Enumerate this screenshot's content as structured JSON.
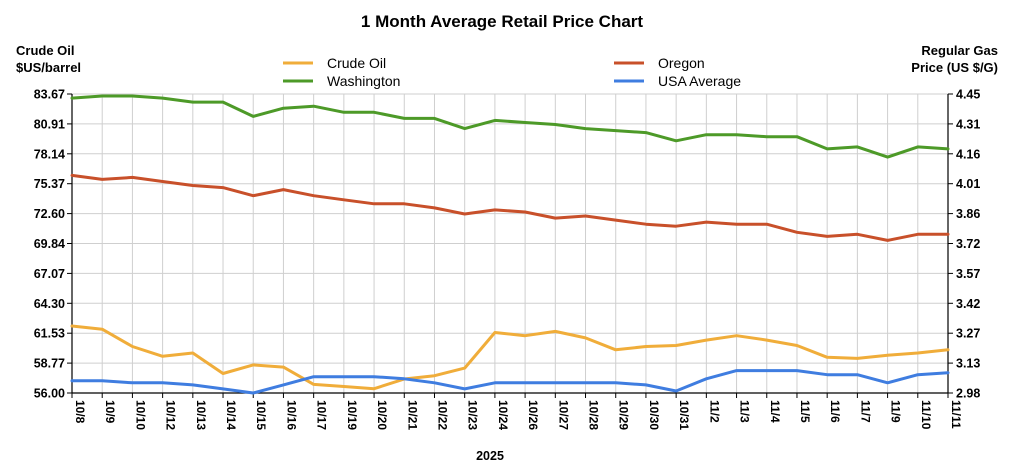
{
  "chart_data": {
    "type": "line",
    "title": "1 Month Average Retail Price Chart",
    "left_axis_label_line1": "Crude Oil",
    "left_axis_label_line2": "$US/barrel",
    "right_axis_label_line1": "Regular Gas",
    "right_axis_label_line2": "Price (US $/G)",
    "year_label": "2025",
    "left_ticks": [
      "56.00",
      "58.77",
      "61.53",
      "64.30",
      "67.07",
      "69.84",
      "72.60",
      "75.37",
      "78.14",
      "80.91",
      "83.67"
    ],
    "right_ticks": [
      "2.98",
      "3.13",
      "3.27",
      "3.42",
      "3.57",
      "3.72",
      "3.86",
      "4.01",
      "4.16",
      "4.31",
      "4.45"
    ],
    "left_range": [
      56.0,
      83.67
    ],
    "right_range": [
      2.98,
      4.45
    ],
    "categories": [
      "10/8",
      "10/9",
      "10/10",
      "10/12",
      "10/13",
      "10/14",
      "10/15",
      "10/16",
      "10/17",
      "10/19",
      "10/20",
      "10/21",
      "10/22",
      "10/23",
      "10/24",
      "10/26",
      "10/27",
      "10/28",
      "10/29",
      "10/30",
      "10/31",
      "11/2",
      "11/3",
      "11/4",
      "11/5",
      "11/6",
      "11/7",
      "11/9",
      "11/10",
      "11/11"
    ],
    "series": [
      {
        "name": "Crude Oil",
        "axis": "left",
        "color": "#f0ad3a",
        "values": [
          62.2,
          61.9,
          60.3,
          59.4,
          59.7,
          57.8,
          58.6,
          58.4,
          56.8,
          56.6,
          56.4,
          57.3,
          57.6,
          58.3,
          61.6,
          61.3,
          61.7,
          61.1,
          60.0,
          60.3,
          60.4,
          60.9,
          61.3,
          60.9,
          60.4,
          59.3,
          59.2,
          59.5,
          59.7,
          60.0
        ]
      },
      {
        "name": "Washington",
        "axis": "right",
        "color": "#4d9a28",
        "values": [
          4.43,
          4.44,
          4.44,
          4.43,
          4.41,
          4.41,
          4.34,
          4.38,
          4.39,
          4.36,
          4.36,
          4.33,
          4.33,
          4.28,
          4.32,
          4.31,
          4.3,
          4.28,
          4.27,
          4.26,
          4.22,
          4.25,
          4.25,
          4.24,
          4.24,
          4.18,
          4.19,
          4.14,
          4.19,
          4.18
        ]
      },
      {
        "name": "Oregon",
        "axis": "right",
        "color": "#c8502a",
        "values": [
          4.05,
          4.03,
          4.04,
          4.02,
          4.0,
          3.99,
          3.95,
          3.98,
          3.95,
          3.93,
          3.91,
          3.91,
          3.89,
          3.86,
          3.88,
          3.87,
          3.84,
          3.85,
          3.83,
          3.81,
          3.8,
          3.82,
          3.81,
          3.81,
          3.77,
          3.75,
          3.76,
          3.73,
          3.76,
          3.76
        ]
      },
      {
        "name": "USA Average",
        "axis": "right",
        "color": "#3f7de0",
        "values": [
          3.04,
          3.04,
          3.03,
          3.03,
          3.02,
          3.0,
          2.98,
          3.02,
          3.06,
          3.06,
          3.06,
          3.05,
          3.03,
          3.0,
          3.03,
          3.03,
          3.03,
          3.03,
          3.03,
          3.02,
          2.99,
          3.05,
          3.09,
          3.09,
          3.09,
          3.07,
          3.07,
          3.03,
          3.07,
          3.08
        ]
      }
    ],
    "legend": [
      {
        "label": "Crude Oil",
        "color": "#f0ad3a"
      },
      {
        "label": "Oregon",
        "color": "#c8502a"
      },
      {
        "label": "Washington",
        "color": "#4d9a28"
      },
      {
        "label": "USA Average",
        "color": "#3f7de0"
      }
    ],
    "grid": true
  }
}
